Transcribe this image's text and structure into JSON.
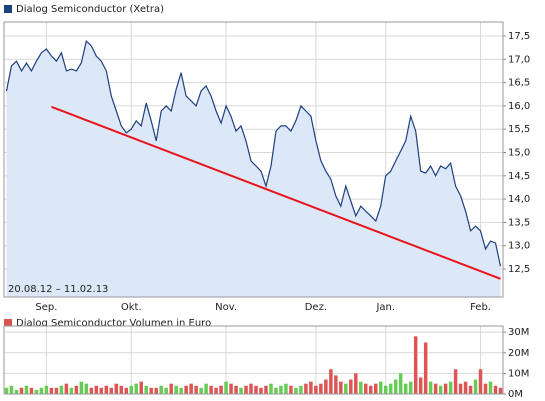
{
  "chart_data": [
    {
      "type": "area",
      "title": "Dialog Semiconductor (Xetra)",
      "annotation": "20.08.12 – 11.02.13",
      "color": "#1f3f7f",
      "fill": "#dce7f8",
      "grid": true,
      "categories": [
        null,
        null,
        null,
        null,
        null,
        null,
        null,
        null,
        "Sep.",
        null,
        null,
        null,
        null,
        null,
        null,
        null,
        null,
        null,
        null,
        null,
        null,
        null,
        null,
        null,
        null,
        "Okt.",
        null,
        null,
        null,
        null,
        null,
        null,
        null,
        null,
        null,
        null,
        null,
        null,
        null,
        null,
        null,
        null,
        null,
        null,
        "Nov.",
        null,
        null,
        null,
        null,
        null,
        null,
        null,
        null,
        null,
        null,
        null,
        null,
        null,
        null,
        null,
        null,
        null,
        "Dez.",
        null,
        null,
        null,
        null,
        null,
        null,
        null,
        null,
        null,
        null,
        null,
        null,
        null,
        "Jan.",
        null,
        null,
        null,
        null,
        null,
        null,
        null,
        null,
        null,
        null,
        null,
        null,
        null,
        null,
        null,
        null,
        null,
        null,
        "Feb.",
        null,
        null,
        null,
        null
      ],
      "values": [
        16.32,
        16.86,
        16.96,
        16.75,
        16.92,
        16.75,
        16.96,
        17.14,
        17.22,
        17.07,
        16.96,
        17.14,
        16.75,
        16.79,
        16.75,
        16.92,
        17.39,
        17.29,
        17.07,
        16.96,
        16.75,
        16.21,
        15.89,
        15.57,
        15.42,
        15.5,
        15.68,
        15.57,
        16.06,
        15.68,
        15.25,
        15.89,
        16.0,
        15.89,
        16.36,
        16.71,
        16.21,
        16.11,
        16.0,
        16.32,
        16.43,
        16.21,
        15.89,
        15.63,
        16.0,
        15.78,
        15.46,
        15.57,
        15.25,
        14.82,
        14.71,
        14.6,
        14.28,
        14.71,
        15.46,
        15.57,
        15.57,
        15.46,
        15.68,
        16.0,
        15.89,
        15.78,
        15.25,
        14.82,
        14.6,
        14.43,
        14.07,
        13.85,
        14.28,
        13.96,
        13.64,
        13.85,
        13.74,
        13.64,
        13.53,
        13.85,
        14.5,
        14.6,
        14.82,
        15.03,
        15.25,
        15.78,
        15.46,
        14.6,
        14.56,
        14.71,
        14.5,
        14.71,
        14.65,
        14.77,
        14.28,
        14.07,
        13.74,
        13.32,
        13.42,
        13.32,
        12.93,
        13.1,
        13.06,
        12.56
      ],
      "trend": {
        "color": "#e8141c",
        "x": [
          9,
          99
        ],
        "y": [
          15.98,
          12.29
        ]
      },
      "ylim": [
        11.9,
        17.8
      ],
      "yticks": [
        {
          "value": 12.5,
          "label": "12,5"
        },
        {
          "value": 13,
          "label": "13,0"
        },
        {
          "value": 13.5,
          "label": "13,5"
        },
        {
          "value": 14,
          "label": "14,0"
        },
        {
          "value": 14.5,
          "label": "14,5"
        },
        {
          "value": 15,
          "label": "15,0"
        },
        {
          "value": 15.5,
          "label": "15,5"
        },
        {
          "value": 16,
          "label": "16,0"
        },
        {
          "value": 16.5,
          "label": "16,5"
        },
        {
          "value": 17,
          "label": "17,0"
        },
        {
          "value": 17.5,
          "label": "17,5"
        }
      ]
    },
    {
      "type": "bar",
      "title": "Dialog Semiconductor Volumen in Euro",
      "legend_color": "#d9534f",
      "up_color": "#66cc55",
      "down_color": "#dd5555",
      "grid": true,
      "values": [
        3,
        4,
        2,
        3,
        4,
        3,
        2,
        3,
        4,
        3,
        3,
        4,
        5,
        3,
        4,
        6,
        5,
        3,
        4,
        3,
        4,
        3,
        5,
        4,
        3,
        4,
        5,
        6,
        4,
        3,
        3,
        4,
        3,
        5,
        4,
        3,
        4,
        5,
        4,
        3,
        5,
        4,
        3,
        4,
        6,
        5,
        4,
        3,
        4,
        5,
        4,
        3,
        4,
        5,
        3,
        4,
        5,
        4,
        3,
        4,
        5,
        6,
        4,
        5,
        7,
        12,
        9,
        6,
        5,
        7,
        10,
        6,
        5,
        4,
        5,
        6,
        4,
        5,
        7,
        10,
        5,
        6,
        28,
        8,
        25,
        6,
        5,
        4,
        5,
        6,
        12,
        5,
        6,
        4,
        7,
        12,
        5,
        6,
        4,
        3
      ],
      "ylim": [
        0,
        33
      ],
      "yticks": [
        {
          "value": 0,
          "label": "0M"
        },
        {
          "value": 10,
          "label": "10M"
        },
        {
          "value": 20,
          "label": "20M"
        },
        {
          "value": 30,
          "label": "30M"
        }
      ]
    }
  ]
}
